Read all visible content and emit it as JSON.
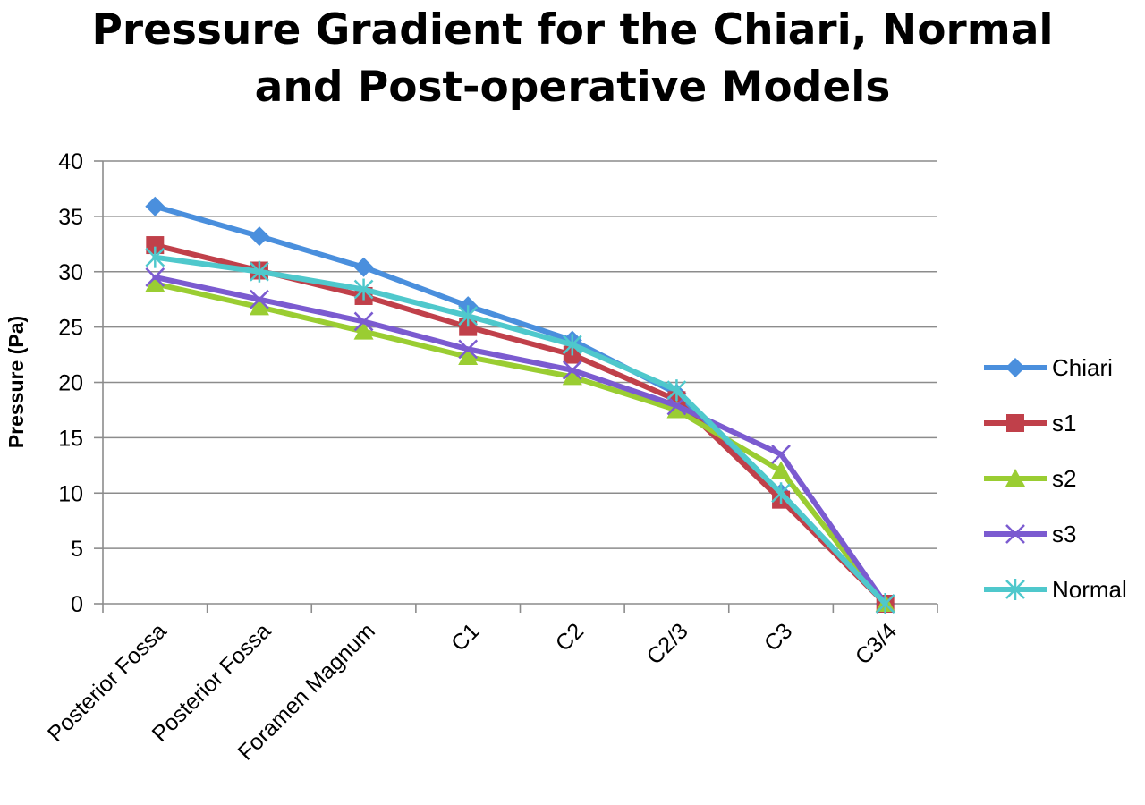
{
  "chart_data": {
    "type": "line",
    "title_lines": [
      "Pressure Gradient for the Chiari, Normal",
      "and Post-operative Models"
    ],
    "xlabel": "",
    "ylabel": "Pressure (Pa)",
    "ylim": [
      0,
      40
    ],
    "yticks": [
      0,
      5,
      10,
      15,
      20,
      25,
      30,
      35,
      40
    ],
    "grid": true,
    "legend_position": "right",
    "categories": [
      "Posterior Fossa",
      "Posterior Fossa",
      "Foramen Magnum",
      "C1",
      "C2",
      "C2/3",
      "C3",
      "C3/4"
    ],
    "series": [
      {
        "name": "Chiari",
        "color": "#4A8FDD",
        "marker": "diamond",
        "values": [
          35.9,
          33.2,
          30.4,
          26.9,
          23.8,
          19.0,
          10.0,
          0
        ]
      },
      {
        "name": "s1",
        "color": "#C0404A",
        "marker": "square",
        "values": [
          32.4,
          30.1,
          27.8,
          25.0,
          22.5,
          18.4,
          9.4,
          0
        ]
      },
      {
        "name": "s2",
        "color": "#9ACD32",
        "marker": "triangle",
        "values": [
          28.9,
          26.8,
          24.6,
          22.3,
          20.5,
          17.5,
          12.0,
          0
        ]
      },
      {
        "name": "s3",
        "color": "#7B5BD0",
        "marker": "x",
        "values": [
          29.5,
          27.5,
          25.5,
          23.0,
          21.1,
          17.9,
          13.5,
          0
        ]
      },
      {
        "name": "Normal",
        "color": "#4FC8CC",
        "marker": "star",
        "values": [
          31.3,
          30.0,
          28.4,
          26.0,
          23.4,
          19.3,
          10.0,
          0
        ]
      }
    ]
  }
}
